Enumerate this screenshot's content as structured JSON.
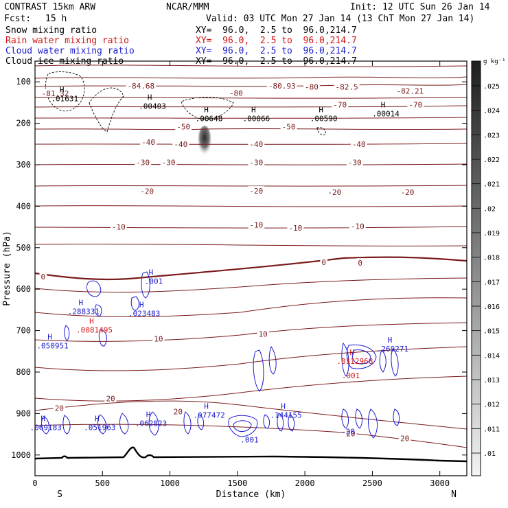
{
  "header": {
    "model": "CONTRAST 15km ARW",
    "org": "NCAR/MMM",
    "init": "Init: 12 UTC Sun 26 Jan 14",
    "fcst_label": "Fcst:",
    "fcst_value": "15 h",
    "valid": "Valid: 03 UTC Mon 27 Jan 14 (13 ChT Mon 27 Jan 14)",
    "xy": "XY=  96.0,  2.5 to  96.0,214.7"
  },
  "fields": [
    {
      "name": "Snow mixing ratio",
      "color": "#000000"
    },
    {
      "name": "Rain water mixing ratio",
      "color": "#d21414"
    },
    {
      "name": "Cloud water mixing ratio",
      "color": "#1b1bd0"
    },
    {
      "name": "Cloud ice mixing ratio",
      "color": "#000000"
    }
  ],
  "chart_data": {
    "type": "contour",
    "xlabel": "Distance (km)",
    "ylabel": "Pressure (hPa)",
    "xlim": [
      0,
      3200
    ],
    "ylim": [
      1050,
      50
    ],
    "x_ticks": [
      0,
      500,
      1000,
      1500,
      2000,
      2500,
      3000
    ],
    "y_ticks": [
      100,
      200,
      300,
      400,
      500,
      600,
      700,
      800,
      900,
      1000
    ],
    "x_end_labels": {
      "left": "S",
      "right": "N"
    },
    "colorbar": {
      "unit": "g kg⁻¹",
      "ticks": [
        ".025",
        ".024",
        ".023",
        ".022",
        ".021",
        ".02",
        ".019",
        ".018",
        ".017",
        ".016",
        ".015",
        ".014",
        ".013",
        ".012",
        ".011",
        ".01"
      ]
    },
    "temperature_labels": [
      {
        "text": "-84.68",
        "x": 785,
        "p": 110
      },
      {
        "text": "-80",
        "x": 1490,
        "p": 127
      },
      {
        "text": "-80.93",
        "x": 1830,
        "p": 110
      },
      {
        "text": "-80",
        "x": 2050,
        "p": 112
      },
      {
        "text": "-82.5",
        "x": 2310,
        "p": 112
      },
      {
        "text": "-82.21",
        "x": 2780,
        "p": 122
      },
      {
        "text": "-81.32",
        "x": 150,
        "p": 128
      },
      {
        "text": "-70",
        "x": 2260,
        "p": 155
      },
      {
        "text": "-70",
        "x": 2820,
        "p": 155
      },
      {
        "text": "-50",
        "x": 1100,
        "p": 208
      },
      {
        "text": "-50",
        "x": 1880,
        "p": 208
      },
      {
        "text": "-40",
        "x": 840,
        "p": 245
      },
      {
        "text": "-40",
        "x": 1080,
        "p": 250
      },
      {
        "text": "-40",
        "x": 1640,
        "p": 250
      },
      {
        "text": "-40",
        "x": 2400,
        "p": 250
      },
      {
        "text": "-30",
        "x": 800,
        "p": 294
      },
      {
        "text": "-30",
        "x": 990,
        "p": 294
      },
      {
        "text": "-30",
        "x": 1640,
        "p": 294
      },
      {
        "text": "-30",
        "x": 2370,
        "p": 294
      },
      {
        "text": "-20",
        "x": 830,
        "p": 364
      },
      {
        "text": "-20",
        "x": 1640,
        "p": 363
      },
      {
        "text": "-20",
        "x": 2220,
        "p": 366
      },
      {
        "text": "-20",
        "x": 2760,
        "p": 366
      },
      {
        "text": "-10",
        "x": 620,
        "p": 450
      },
      {
        "text": "-10",
        "x": 1640,
        "p": 445
      },
      {
        "text": "-10",
        "x": 1930,
        "p": 452
      },
      {
        "text": "-10",
        "x": 2390,
        "p": 448
      },
      {
        "text": "0",
        "x": 60,
        "p": 570
      },
      {
        "text": "0",
        "x": 2140,
        "p": 535
      },
      {
        "text": "0",
        "x": 2410,
        "p": 537
      },
      {
        "text": "10",
        "x": 915,
        "p": 720
      },
      {
        "text": "10",
        "x": 1690,
        "p": 708
      },
      {
        "text": "20",
        "x": 180,
        "p": 887
      },
      {
        "text": "20",
        "x": 560,
        "p": 864
      },
      {
        "text": "20",
        "x": 1060,
        "p": 895
      },
      {
        "text": "20",
        "x": 2340,
        "p": 948
      },
      {
        "text": "20",
        "x": 2740,
        "p": 960
      }
    ],
    "extrema_labels": [
      {
        "kind": "H",
        "value": ".01631",
        "x": 220,
        "p": 142,
        "color": "#000000"
      },
      {
        "kind": "H",
        "value": ".00403",
        "x": 870,
        "p": 160,
        "color": "#000000"
      },
      {
        "kind": "H",
        "value": ".00648",
        "x": 1290,
        "p": 190,
        "color": "#000000"
      },
      {
        "kind": "H",
        "value": ".00066",
        "x": 1640,
        "p": 190,
        "color": "#000000"
      },
      {
        "kind": "H",
        "value": ".00590",
        "x": 2140,
        "p": 190,
        "color": "#000000"
      },
      {
        "kind": "H",
        "value": ".00014",
        "x": 2600,
        "p": 178,
        "color": "#000000"
      },
      {
        "kind": "H",
        "value": ".001",
        "x": 880,
        "p": 582,
        "color": "#1b1bd0"
      },
      {
        "kind": "H",
        "value": ".288331",
        "x": 360,
        "p": 655,
        "color": "#1b1bd0"
      },
      {
        "kind": "H",
        "value": ".023483",
        "x": 810,
        "p": 660,
        "color": "#1b1bd0"
      },
      {
        "kind": "H",
        "value": ".0081495",
        "x": 440,
        "p": 700,
        "color": "#d21414"
      },
      {
        "kind": "H",
        "value": ".050951",
        "x": 130,
        "p": 738,
        "color": "#1b1bd0"
      },
      {
        "kind": "H",
        "value": ".269271",
        "x": 2650,
        "p": 745,
        "color": "#1b1bd0"
      },
      {
        "kind": "H",
        "value": ".0112968",
        "x": 2370,
        "p": 775,
        "color": "#d21414"
      },
      {
        "kind": "H",
        "value": ".069183",
        "x": 80,
        "p": 935,
        "color": "#1b1bd0"
      },
      {
        "kind": "H",
        "value": ".051963",
        "x": 480,
        "p": 935,
        "color": "#1b1bd0"
      },
      {
        "kind": "H",
        "value": ".062823",
        "x": 860,
        "p": 925,
        "color": "#1b1bd0"
      },
      {
        "kind": "H",
        "value": ".077472",
        "x": 1290,
        "p": 905,
        "color": "#1b1bd0"
      },
      {
        "kind": "H",
        "value": ".144155",
        "x": 1860,
        "p": 905,
        "color": "#1b1bd0"
      },
      {
        "kind": "",
        "value": ".001",
        "x": 1590,
        "p": 965,
        "color": "#1b1bd0"
      },
      {
        "kind": "",
        "value": ".001",
        "x": 2340,
        "p": 810,
        "color": "#d21414"
      },
      {
        "kind": "",
        "value": "-20",
        "x": 2320,
        "p": 945,
        "color": "#1b1bd0"
      }
    ]
  }
}
